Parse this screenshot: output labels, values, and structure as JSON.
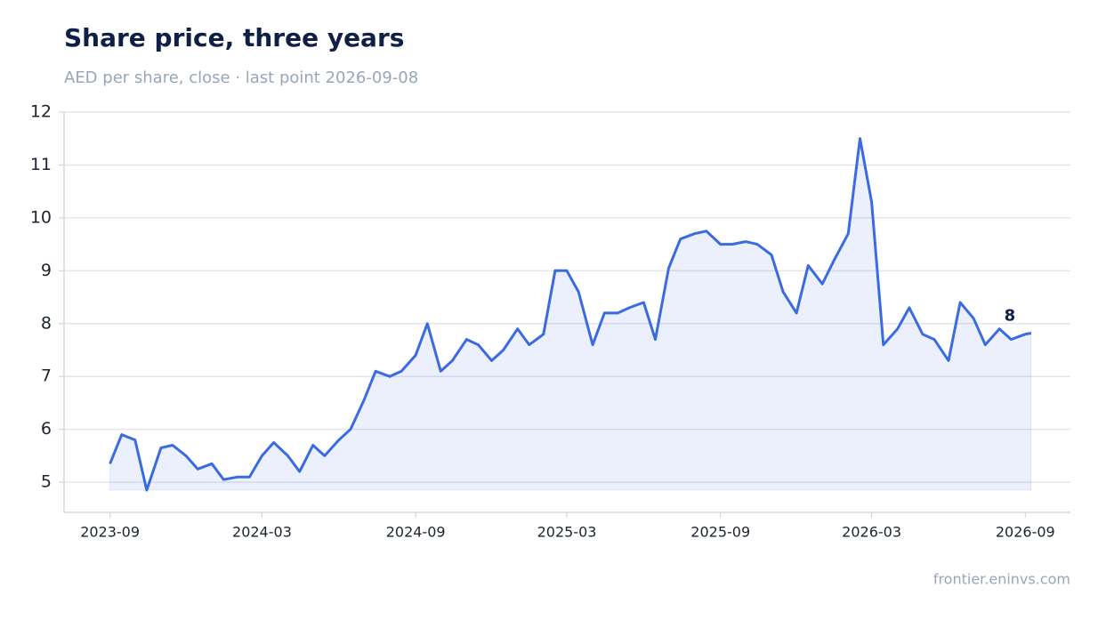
{
  "chart_data": {
    "type": "line",
    "title": "Share price, three years",
    "subtitle": "AED per share, close · last point 2026-09-08",
    "source": "frontier.eninvs.com",
    "x": [
      "2023-09-01",
      "2023-09-15",
      "2023-10-01",
      "2023-10-15",
      "2023-11-01",
      "2023-11-15",
      "2023-12-01",
      "2023-12-15",
      "2024-01-01",
      "2024-01-15",
      "2024-02-01",
      "2024-02-15",
      "2024-03-01",
      "2024-03-15",
      "2024-04-01",
      "2024-04-15",
      "2024-05-01",
      "2024-05-15",
      "2024-06-01",
      "2024-06-15",
      "2024-07-01",
      "2024-07-15",
      "2024-08-01",
      "2024-08-15",
      "2024-09-01",
      "2024-09-15",
      "2024-10-01",
      "2024-10-15",
      "2024-11-01",
      "2024-11-15",
      "2024-12-01",
      "2024-12-15",
      "2025-01-01",
      "2025-01-15",
      "2025-02-01",
      "2025-02-15",
      "2025-03-01",
      "2025-03-15",
      "2025-04-01",
      "2025-04-15",
      "2025-05-01",
      "2025-05-15",
      "2025-06-01",
      "2025-06-15",
      "2025-07-01",
      "2025-07-15",
      "2025-08-01",
      "2025-08-15",
      "2025-09-01",
      "2025-09-15",
      "2025-10-01",
      "2025-10-15",
      "2025-11-01",
      "2025-11-15",
      "2025-12-01",
      "2025-12-15",
      "2026-01-01",
      "2026-01-15",
      "2026-02-01",
      "2026-02-15",
      "2026-03-01",
      "2026-03-15",
      "2026-04-01",
      "2026-04-15",
      "2026-05-01",
      "2026-05-15",
      "2026-06-01",
      "2026-06-15",
      "2026-07-01",
      "2026-07-15",
      "2026-08-01",
      "2026-08-15",
      "2026-09-01",
      "2026-09-08"
    ],
    "series": [
      {
        "name": "Close",
        "color": "#3b6be0",
        "values": [
          5.35,
          5.9,
          5.8,
          4.85,
          5.65,
          5.7,
          5.5,
          5.25,
          5.35,
          5.05,
          5.1,
          5.1,
          5.5,
          5.75,
          5.5,
          5.2,
          5.7,
          5.5,
          5.8,
          6.0,
          6.55,
          7.1,
          7.0,
          7.1,
          7.4,
          8.0,
          7.1,
          7.3,
          7.7,
          7.6,
          7.3,
          7.5,
          7.9,
          7.6,
          7.8,
          9.0,
          9.0,
          8.6,
          7.6,
          8.2,
          8.2,
          8.3,
          8.4,
          7.7,
          9.05,
          9.6,
          9.7,
          9.75,
          9.5,
          9.5,
          9.55,
          9.5,
          9.3,
          8.6,
          8.2,
          9.1,
          8.75,
          9.2,
          9.7,
          11.5,
          10.3,
          7.6,
          7.9,
          8.3,
          7.8,
          7.7,
          7.3,
          8.4,
          8.1,
          7.6,
          7.9,
          7.7,
          7.8,
          7.82
        ]
      }
    ],
    "annotations": [
      {
        "x": "2026-09-08",
        "label": "8"
      }
    ],
    "xlim": [
      "2023-07-08",
      "2026-10-25"
    ],
    "xticks": [
      "2023-09",
      "2024-03",
      "2024-09",
      "2025-03",
      "2025-09",
      "2026-03",
      "2026-09"
    ],
    "ylim": [
      4.43,
      12
    ],
    "yticks": [
      5,
      6,
      7,
      8,
      9,
      10,
      11,
      12
    ],
    "grid": true
  }
}
